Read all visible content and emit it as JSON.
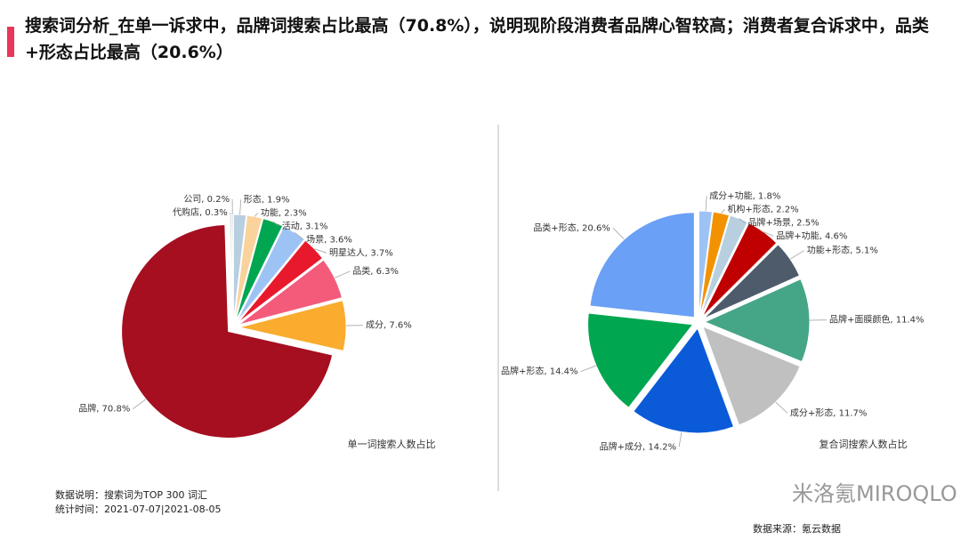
{
  "header": {
    "title": "搜索词分析_在单一诉求中，品牌词搜索占比最高（70.8%），说明现阶段消费者品牌心智较高；消费者复合诉求中，品类+形态占比最高（20.6%）"
  },
  "chart_data": [
    {
      "type": "pie",
      "title": "单一词搜索人数占比",
      "values": [
        1.9,
        2.3,
        3.1,
        3.6,
        3.7,
        6.3,
        7.6,
        70.8,
        0.3,
        0.2
      ],
      "value_labels": [
        "形态, 1.9%",
        "功能, 2.3%",
        "活动, 3.1%",
        "场景, 3.6%",
        "明星达人, 3.7%",
        "品类, 6.3%",
        "成分, 7.6%",
        "品牌, 70.8%",
        "代购店, 0.3%",
        "公司, 0.2%"
      ],
      "colors": [
        "#b8cfe0",
        "#f9d29c",
        "#00a650",
        "#9dc3f5",
        "#e8192c",
        "#f45b7b",
        "#f9ac2e",
        "#a50f20",
        "#d9d9d9",
        "#bfbfbf"
      ]
    },
    {
      "type": "pie",
      "title": "复合词搜索人数占比",
      "values": [
        1.8,
        2.2,
        2.5,
        4.6,
        5.1,
        11.4,
        11.7,
        14.2,
        14.4,
        20.6
      ],
      "value_labels": [
        "成分+功能, 1.8%",
        "机构+形态, 2.2%",
        "品牌+场景, 2.5%",
        "品牌+功能, 4.6%",
        "功能+形态, 5.1%",
        "品牌+面膜颜色, 11.4%",
        "成分+形态, 11.7%",
        "品牌+成分, 14.2%",
        "品牌+形态, 14.4%",
        "品类+形态, 20.6%"
      ],
      "colors": [
        "#9dc3f5",
        "#f39200",
        "#b8cfe0",
        "#c00000",
        "#4d5b6b",
        "#45a587",
        "#c0c0c0",
        "#0b5bd8",
        "#00a650",
        "#6aa0f5"
      ]
    }
  ],
  "footer": {
    "note": "数据说明：搜索词为TOP 300 词汇",
    "period": "统计时间：2021-07-07|2021-08-05",
    "brand": "米洛氪MIROQLO",
    "source": "数据来源：氪云数据"
  }
}
